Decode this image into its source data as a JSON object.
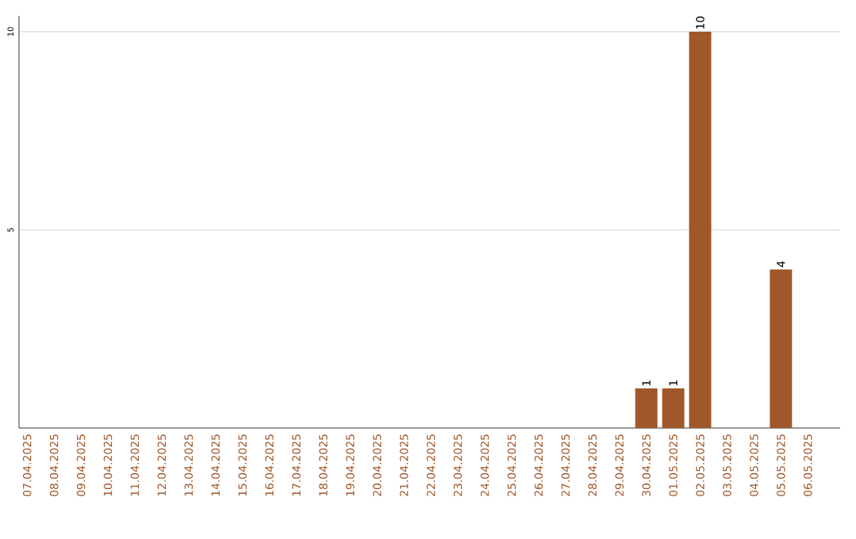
{
  "chart_data": {
    "type": "bar",
    "categories": [
      "07.04.2025",
      "08.04.2025",
      "09.04.2025",
      "10.04.2025",
      "11.04.2025",
      "12.04.2025",
      "13.04.2025",
      "14.04.2025",
      "15.04.2025",
      "16.04.2025",
      "17.04.2025",
      "18.04.2025",
      "19.04.2025",
      "20.04.2025",
      "21.04.2025",
      "22.04.2025",
      "23.04.2025",
      "24.04.2025",
      "25.04.2025",
      "26.04.2025",
      "27.04.2025",
      "28.04.2025",
      "29.04.2025",
      "30.04.2025",
      "01.05.2025",
      "02.05.2025",
      "03.05.2025",
      "04.05.2025",
      "05.05.2025",
      "06.05.2025"
    ],
    "values": [
      0,
      0,
      0,
      0,
      0,
      0,
      0,
      0,
      0,
      0,
      0,
      0,
      0,
      0,
      0,
      0,
      0,
      0,
      0,
      0,
      0,
      0,
      0,
      1,
      1,
      10,
      0,
      0,
      4,
      0
    ],
    "value_labels": [
      null,
      null,
      null,
      null,
      null,
      null,
      null,
      null,
      null,
      null,
      null,
      null,
      null,
      null,
      null,
      null,
      null,
      null,
      null,
      null,
      null,
      null,
      null,
      "1",
      "1",
      "10",
      null,
      null,
      "4",
      null
    ],
    "color": "#a0582a",
    "ylim": [
      0,
      10.4
    ],
    "yticks": [
      5,
      10
    ],
    "grid": "y"
  }
}
